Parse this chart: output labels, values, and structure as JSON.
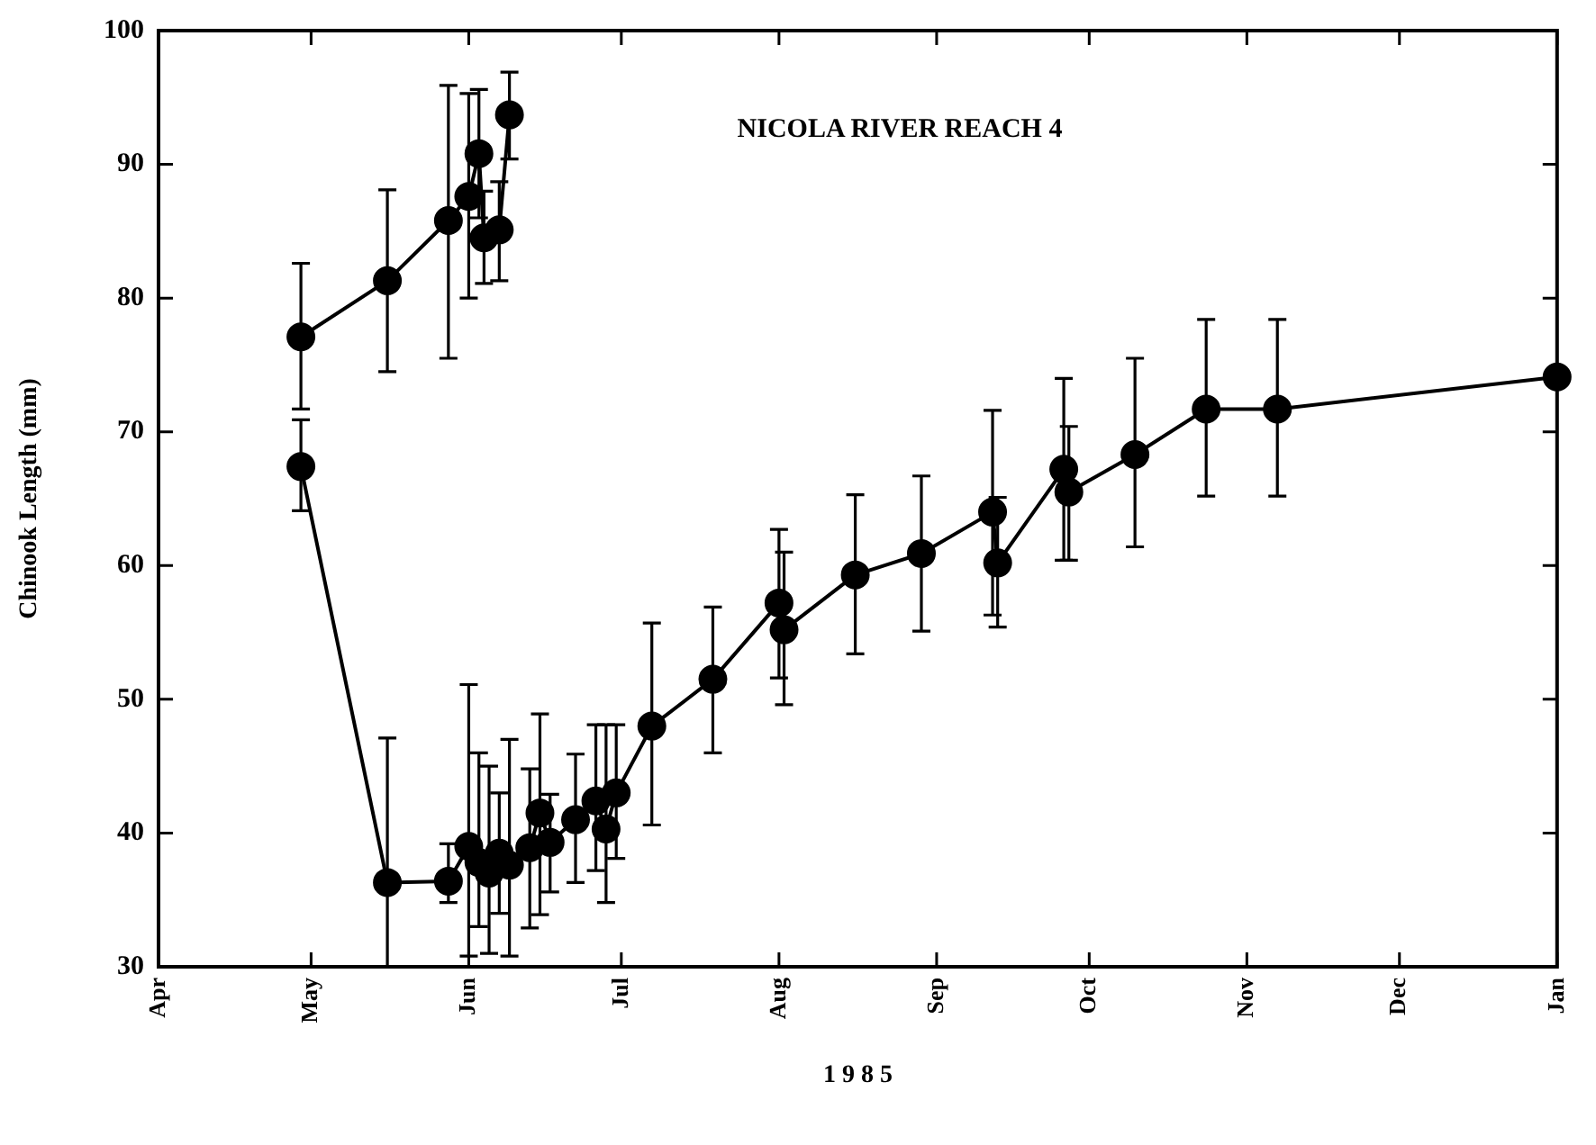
{
  "chart_data": {
    "type": "line",
    "title": "NICOLA RIVER REACH 4",
    "xlabel": "1 9 8 5",
    "ylabel": "Chinook Length (mm)",
    "xlim": [
      "--04-01",
      "--12-31T23:59"
    ],
    "xticks": [
      {
        "value": "--04-01",
        "label": "Apr"
      },
      {
        "value": "--05-01",
        "label": "May"
      },
      {
        "value": "--06-01",
        "label": "Jun"
      },
      {
        "value": "--07-01",
        "label": "Jul"
      },
      {
        "value": "--08-01",
        "label": "Aug"
      },
      {
        "value": "--09-01",
        "label": "Sep"
      },
      {
        "value": "--10-01",
        "label": "Oct"
      },
      {
        "value": "--11-01",
        "label": "Nov"
      },
      {
        "value": "--12-01",
        "label": "Dec"
      },
      {
        "value": "--12-31T23:59",
        "label": null
      }
    ],
    "annotations": [
      "Jan"
    ],
    "ylim": [
      30,
      100
    ],
    "yticks": [
      30,
      40,
      50,
      60,
      70,
      80,
      90,
      100
    ],
    "grid": false,
    "legend": false,
    "marker": "circle",
    "line_style": "solid",
    "series": [
      {
        "color": "#000000",
        "x": [
          "--04-29",
          "--05-16",
          "--05-28",
          "--06-01",
          "--06-03",
          "--06-04",
          "--06-07",
          "--06-09"
        ],
        "values": [
          77.1,
          81.3,
          85.8,
          87.6,
          90.8,
          84.5,
          85.1,
          93.7
        ],
        "errors": [
          [
            71.7,
            82.6
          ],
          [
            74.5,
            88.1
          ],
          [
            75.5,
            95.9
          ],
          [
            80,
            95.3
          ],
          [
            86,
            95.6
          ],
          [
            81.1,
            88
          ],
          [
            81.3,
            88.7
          ],
          [
            90.4,
            96.9
          ]
        ]
      },
      {
        "color": "#000000",
        "x": [
          "--04-29",
          "--05-16",
          "--05-28",
          "--06-01",
          "--06-03",
          "--06-05",
          "--06-07",
          "--06-09",
          "--06-13",
          "--06-15",
          "--06-17",
          "--06-22",
          "--06-26",
          "--06-28",
          "--06-30",
          "--07-07",
          "--07-19",
          "--08-01",
          "--08-02",
          "--08-16",
          "--08-29",
          "--09-12",
          "--09-13",
          "--09-26",
          "--09-27",
          "--10-10",
          "--10-24",
          "--11-07",
          "--12-31T23:59"
        ],
        "values": [
          67.4,
          36.3,
          36.4,
          39.0,
          37.8,
          37.0,
          38.5,
          37.6,
          38.9,
          41.5,
          39.3,
          41.0,
          42.4,
          40.3,
          43.0,
          48.0,
          51.5,
          57.2,
          55.2,
          59.3,
          60.9,
          64.0,
          60.2,
          67.2,
          65.5,
          68.3,
          71.7,
          71.7,
          74.1
        ],
        "errors": [
          [
            64.1,
            70.9
          ],
          [
            30,
            47.1
          ],
          [
            34.8,
            39.2
          ],
          [
            30.8,
            51.1
          ],
          [
            33,
            46
          ],
          [
            31,
            45
          ],
          [
            34,
            43
          ],
          [
            30.8,
            47
          ],
          [
            32.9,
            44.8
          ],
          [
            33.9,
            48.9
          ],
          [
            35.6,
            42.9
          ],
          [
            36.3,
            45.9
          ],
          [
            37.2,
            48.1
          ],
          [
            34.8,
            48.1
          ],
          [
            38.1,
            48.1
          ],
          [
            40.6,
            55.7
          ],
          [
            46.0,
            56.9
          ],
          [
            51.6,
            62.7
          ],
          [
            49.6,
            61.0
          ],
          [
            53.4,
            65.3
          ],
          [
            55.1,
            66.7
          ],
          [
            56.3,
            71.6
          ],
          [
            55.4,
            65.1
          ],
          [
            60.4,
            74.0
          ],
          [
            60.4,
            70.4
          ],
          [
            61.4,
            75.5
          ],
          [
            65.2,
            78.4
          ],
          [
            65.2,
            78.4
          ],
          null
        ]
      }
    ]
  }
}
